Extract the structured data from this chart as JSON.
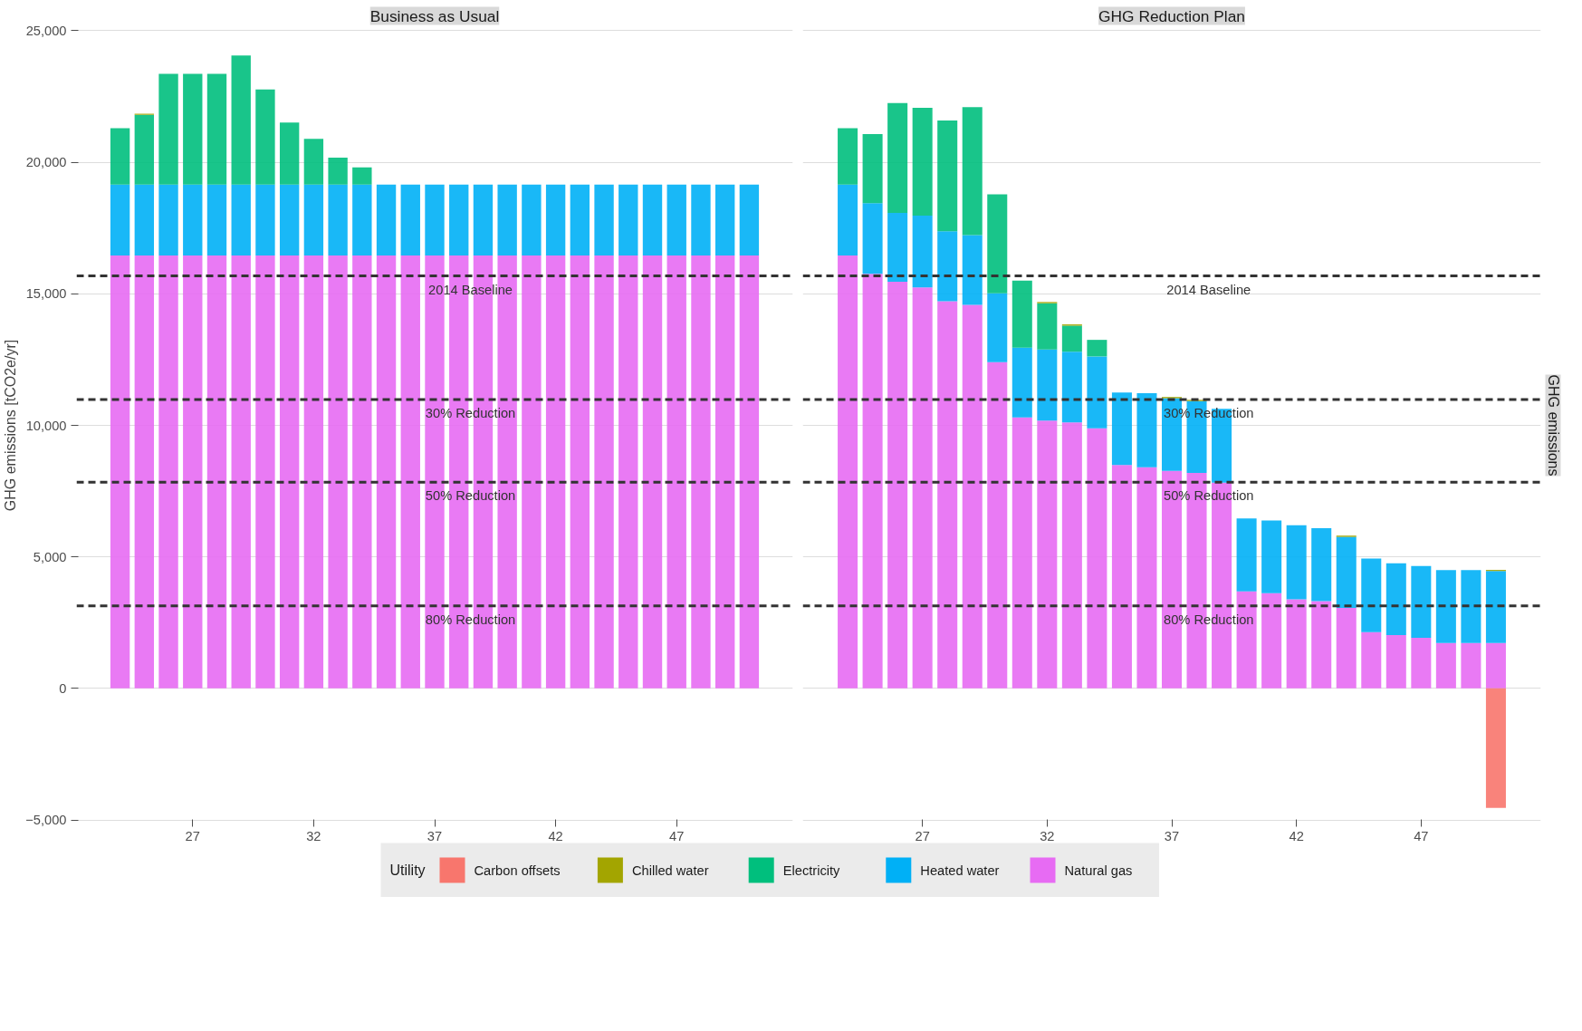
{
  "chart_data": [
    {
      "type": "bar",
      "stacked": true,
      "title": "Business as Usual",
      "ylabel": "GHG emissions [tCO2e/yr]",
      "grid": "y",
      "tick_labels": "xy",
      "legend": "bottom",
      "legend_title": "Utility",
      "x": [
        24,
        25,
        26,
        27,
        28,
        29,
        30,
        31,
        32,
        33,
        34,
        35,
        36,
        37,
        38,
        39,
        40,
        41,
        42,
        43,
        44,
        45,
        46,
        47,
        48,
        49,
        50
      ],
      "xlim": [
        22.2,
        51.8
      ],
      "xticks": [
        27,
        32,
        37,
        42,
        47
      ],
      "ylim": [
        -5050,
        25050
      ],
      "yticks": [
        {
          "value": -5000,
          "label": "−5,000"
        },
        0,
        {
          "value": 5000,
          "label": "5,000"
        },
        {
          "value": 10000,
          "label": "10,000"
        },
        {
          "value": 15000,
          "label": "15,000"
        },
        {
          "value": 20000,
          "label": "20,000"
        },
        {
          "value": 25000,
          "label": "25,000"
        }
      ],
      "series": [
        {
          "name": "Natural gas",
          "color": "#e76bf3",
          "values": [
            16460,
            16460,
            16460,
            16460,
            16460,
            16460,
            16460,
            16460,
            16460,
            16460,
            16460,
            16460,
            16460,
            16460,
            16460,
            16460,
            16460,
            16460,
            16460,
            16460,
            16460,
            16460,
            16460,
            16460,
            16460,
            16460,
            16460
          ]
        },
        {
          "name": "Heated water",
          "color": "#00b0f6",
          "values": [
            2690,
            2690,
            2690,
            2690,
            2690,
            2690,
            2690,
            2690,
            2690,
            2690,
            2690,
            2690,
            2690,
            2690,
            2690,
            2690,
            2690,
            2690,
            2690,
            2690,
            2690,
            2690,
            2690,
            2690,
            2690,
            2690,
            2690
          ]
        },
        {
          "name": "Electricity",
          "color": "#00bf7d",
          "values": [
            2150,
            2650,
            4210,
            4210,
            4210,
            4910,
            3620,
            2360,
            1740,
            1030,
            660,
            0,
            0,
            0,
            0,
            0,
            0,
            0,
            0,
            0,
            0,
            0,
            0,
            0,
            0,
            0,
            0
          ]
        },
        {
          "name": "Chilled water",
          "color": "#a3a500",
          "values": [
            0,
            50,
            0,
            0,
            0,
            0,
            0,
            0,
            0,
            0,
            0,
            0,
            0,
            0,
            0,
            0,
            0,
            0,
            0,
            0,
            0,
            0,
            0,
            0,
            0,
            0,
            0
          ]
        },
        {
          "name": "Carbon offsets",
          "color": "#f8766d",
          "values": [
            0,
            0,
            0,
            0,
            0,
            0,
            0,
            0,
            0,
            0,
            0,
            0,
            0,
            0,
            0,
            0,
            0,
            0,
            0,
            0,
            0,
            0,
            0,
            0,
            0,
            0,
            0
          ]
        }
      ],
      "ref_lines": [
        {
          "axis": "y",
          "value": 15680,
          "label": "2014 Baseline",
          "line_style": "dashed",
          "color": "#333333"
        },
        {
          "axis": "y",
          "value": 10980,
          "label": "30% Reduction",
          "line_style": "dashed",
          "color": "#333333"
        },
        {
          "axis": "y",
          "value": 7840,
          "label": "50% Reduction",
          "line_style": "dashed",
          "color": "#333333"
        },
        {
          "axis": "y",
          "value": 3140,
          "label": "80% Reduction",
          "line_style": "dashed",
          "color": "#333333"
        }
      ]
    },
    {
      "type": "bar",
      "stacked": true,
      "title": "GHG Reduction Plan",
      "y2label": "GHG emissions",
      "grid": "y",
      "tick_labels": "x",
      "x": [
        24,
        25,
        26,
        27,
        28,
        29,
        30,
        31,
        32,
        33,
        34,
        35,
        36,
        37,
        38,
        39,
        40,
        41,
        42,
        43,
        44,
        45,
        46,
        47,
        48,
        49,
        50
      ],
      "xlim": [
        22.2,
        51.8
      ],
      "xticks": [
        27,
        32,
        37,
        42,
        47
      ],
      "ylim": [
        -5050,
        25050
      ],
      "yticks": [
        -5000,
        0,
        5000,
        10000,
        15000,
        20000,
        25000
      ],
      "series": [
        {
          "color": "#e76bf3",
          "values": [
            16460,
            15760,
            15460,
            15240,
            14720,
            14580,
            12400,
            10300,
            10180,
            10110,
            9890,
            8490,
            8410,
            8270,
            8190,
            7820,
            3690,
            3620,
            3390,
            3320,
            3060,
            2140,
            2030,
            1920,
            1730,
            1730,
            1730
          ]
        },
        {
          "color": "#00b0f6",
          "values": [
            2690,
            2690,
            2620,
            2730,
            2660,
            2650,
            2620,
            2650,
            2700,
            2690,
            2730,
            2760,
            2810,
            2760,
            2730,
            2810,
            2770,
            2760,
            2810,
            2770,
            2700,
            2800,
            2730,
            2730,
            2770,
            2770,
            2730
          ]
        },
        {
          "color": "#00bf7d",
          "values": [
            2150,
            2620,
            4170,
            4100,
            4210,
            4870,
            3760,
            2550,
            1760,
            990,
            630,
            0,
            0,
            0,
            0,
            0,
            0,
            0,
            0,
            0,
            0,
            0,
            0,
            0,
            0,
            0,
            0
          ]
        },
        {
          "color": "#a3a500",
          "values": [
            0,
            0,
            0,
            0,
            0,
            0,
            0,
            0,
            50,
            50,
            0,
            0,
            0,
            50,
            50,
            0,
            0,
            0,
            0,
            0,
            50,
            0,
            0,
            0,
            0,
            0,
            50
          ]
        },
        {
          "color": "#f8766d",
          "values": [
            0,
            0,
            0,
            0,
            0,
            0,
            0,
            0,
            0,
            0,
            0,
            0,
            0,
            0,
            0,
            0,
            0,
            0,
            0,
            0,
            0,
            0,
            0,
            0,
            0,
            0,
            -4540
          ]
        }
      ],
      "ref_lines": [
        {
          "axis": "y",
          "value": 15680,
          "label": "2014 Baseline",
          "line_style": "dashed",
          "color": "#333333"
        },
        {
          "axis": "y",
          "value": 10980,
          "label": "30% Reduction",
          "line_style": "dashed",
          "color": "#333333"
        },
        {
          "axis": "y",
          "value": 7840,
          "label": "50% Reduction",
          "line_style": "dashed",
          "color": "#333333"
        },
        {
          "axis": "y",
          "value": 3140,
          "label": "80% Reduction",
          "line_style": "dashed",
          "color": "#333333"
        }
      ]
    }
  ]
}
